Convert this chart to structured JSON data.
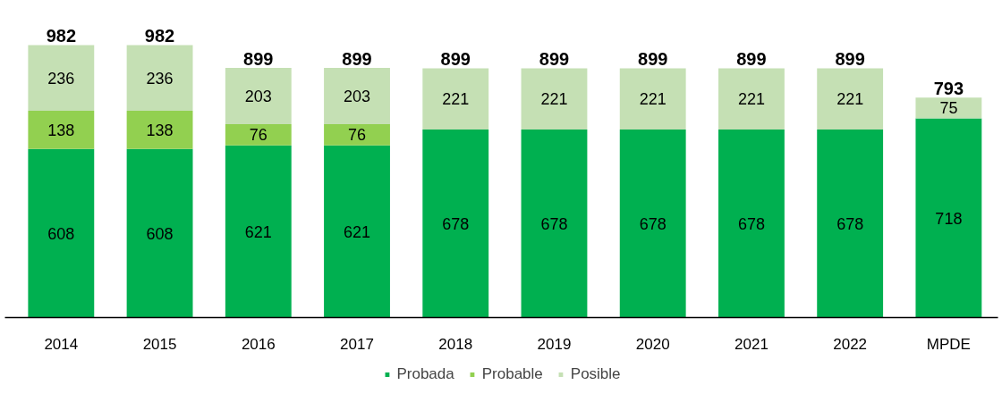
{
  "chart_data": {
    "type": "bar",
    "stacked": true,
    "data_labels": true,
    "legend": "bottom",
    "grid": false,
    "categories": [
      "2014",
      "2015",
      "2016",
      "2017",
      "2018",
      "2019",
      "2020",
      "2021",
      "2022",
      "MPDE"
    ],
    "series": [
      {
        "name": "Probada",
        "color": "#00b050",
        "values": [
          608,
          608,
          621,
          621,
          678,
          678,
          678,
          678,
          678,
          718
        ]
      },
      {
        "name": "Probable",
        "color": "#92d050",
        "values": [
          138,
          138,
          76,
          76,
          null,
          null,
          null,
          null,
          null,
          null
        ]
      },
      {
        "name": "Posible",
        "color": "#c5e0b4",
        "values": [
          236,
          236,
          203,
          203,
          221,
          221,
          221,
          221,
          221,
          75
        ]
      }
    ],
    "totals": [
      "982",
      "982",
      "899",
      "899",
      "899",
      "899",
      "899",
      "899",
      "899",
      "793"
    ]
  }
}
